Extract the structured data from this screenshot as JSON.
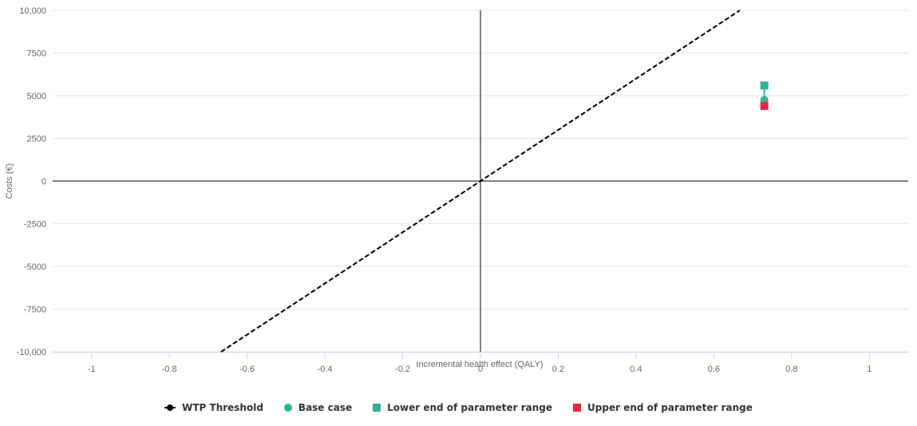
{
  "chart_data": {
    "type": "scatter",
    "title": "",
    "xlabel": "Incremental health effect (QALY)",
    "ylabel": "Costs (€)",
    "xlim": [
      -1.1,
      1.1
    ],
    "ylim": [
      -10000,
      10000
    ],
    "x_ticks": [
      -1,
      -0.8,
      -0.6,
      -0.4,
      -0.2,
      0,
      0.2,
      0.4,
      0.6,
      0.8,
      1
    ],
    "x_tick_labels": [
      "-1",
      "-0.8",
      "-0.6",
      "-0.4",
      "-0.2",
      "0",
      "0.2",
      "0.4",
      "0.6",
      "0.8",
      "1"
    ],
    "y_ticks": [
      10000,
      7500,
      5000,
      2500,
      0,
      -2500,
      -5000,
      -7500,
      -10000
    ],
    "y_tick_labels": [
      "10,000",
      "7500",
      "5000",
      "2500",
      "0",
      "-2500",
      "-5000",
      "-7500",
      "-10,000"
    ],
    "grid": true,
    "legend_position": "bottom-center",
    "series": [
      {
        "name": "WTP Threshold",
        "kind": "dashed-line",
        "color": "#000000",
        "points": [
          {
            "x": -0.667,
            "y": -10000
          },
          {
            "x": 0,
            "y": 0
          },
          {
            "x": 0.667,
            "y": 10000
          }
        ]
      },
      {
        "name": "Base case",
        "kind": "circle",
        "color": "#2bb497",
        "points": [
          {
            "x": 0.73,
            "y": 4750
          }
        ]
      },
      {
        "name": "Lower end of parameter range",
        "kind": "square",
        "color": "#2bb497",
        "points": [
          {
            "x": 0.73,
            "y": 5600
          }
        ]
      },
      {
        "name": "Upper end of parameter range",
        "kind": "square",
        "color": "#e8263c",
        "points": [
          {
            "x": 0.73,
            "y": 4400
          }
        ]
      }
    ]
  }
}
